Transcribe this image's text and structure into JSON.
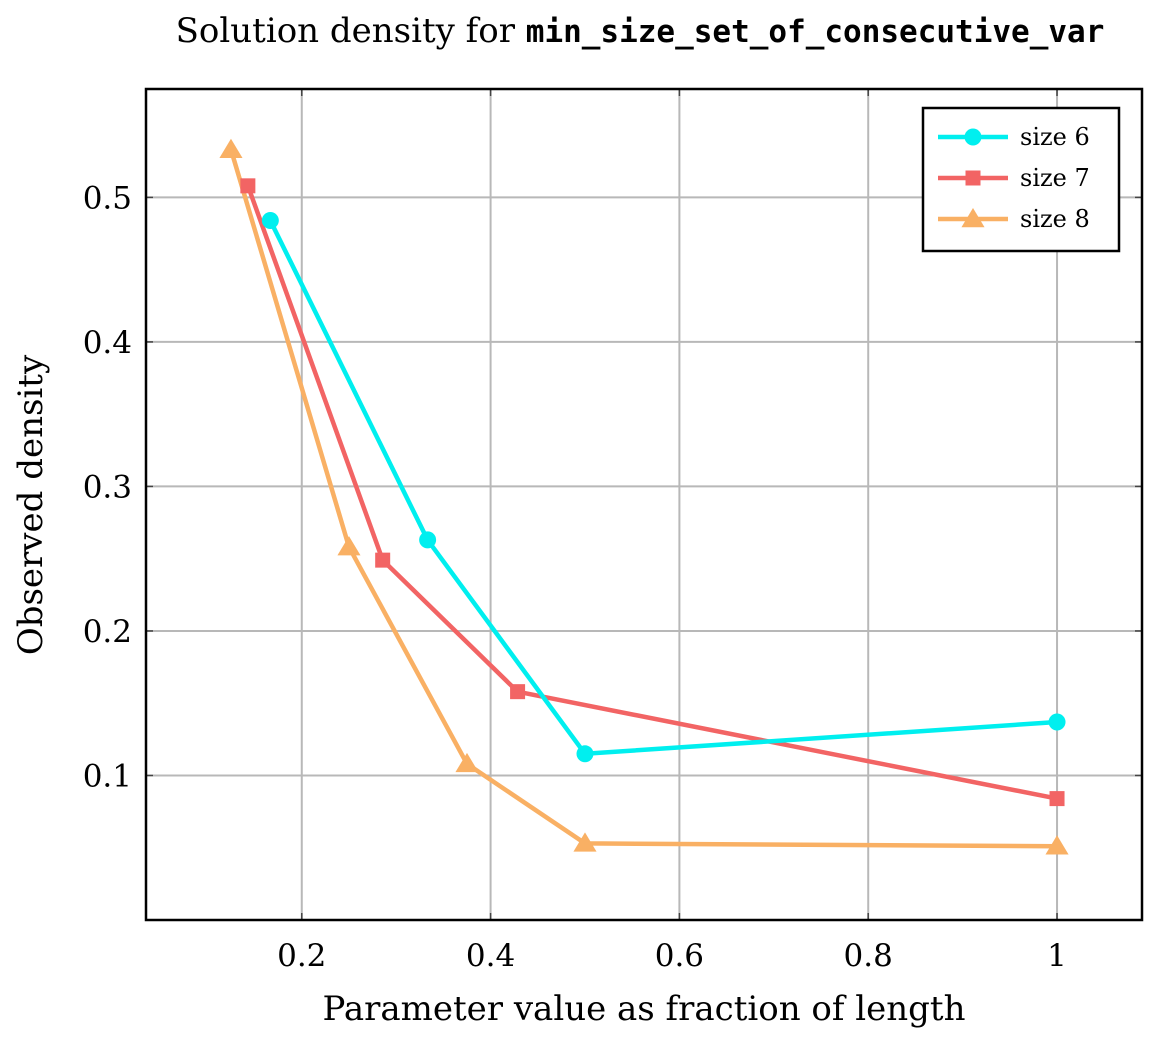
{
  "chart_data": {
    "type": "line",
    "title_prefix": "Solution density for ",
    "title_code": "min_size_set_of_consecutive_var",
    "xlabel": "Parameter value as fraction of length",
    "ylabel": "Observed density",
    "xlim": [
      0.035,
      1.09
    ],
    "ylim": [
      0.0,
      0.575
    ],
    "xticks": [
      0.2,
      0.4,
      0.6,
      0.8,
      1.0
    ],
    "xtick_labels": [
      "0.2",
      "0.4",
      "0.6",
      "0.8",
      "1"
    ],
    "yticks": [
      0.1,
      0.2,
      0.3,
      0.4,
      0.5
    ],
    "ytick_labels": [
      "0.1",
      "0.2",
      "0.3",
      "0.4",
      "0.5"
    ],
    "grid": true,
    "legend_position": "top-right",
    "series": [
      {
        "name": "size 6",
        "color": "#00efef",
        "marker": "circle",
        "x": [
          0.1667,
          0.3333,
          0.5,
          1.0
        ],
        "y": [
          0.484,
          0.263,
          0.115,
          0.137
        ]
      },
      {
        "name": "size 7",
        "color": "#f26464",
        "marker": "square",
        "x": [
          0.1429,
          0.2857,
          0.4286,
          1.0
        ],
        "y": [
          0.508,
          0.249,
          0.158,
          0.084
        ]
      },
      {
        "name": "size 8",
        "color": "#f9b064",
        "marker": "triangle",
        "x": [
          0.125,
          0.25,
          0.375,
          0.5,
          1.0
        ],
        "y": [
          0.533,
          0.258,
          0.108,
          0.053,
          0.051
        ]
      }
    ]
  }
}
